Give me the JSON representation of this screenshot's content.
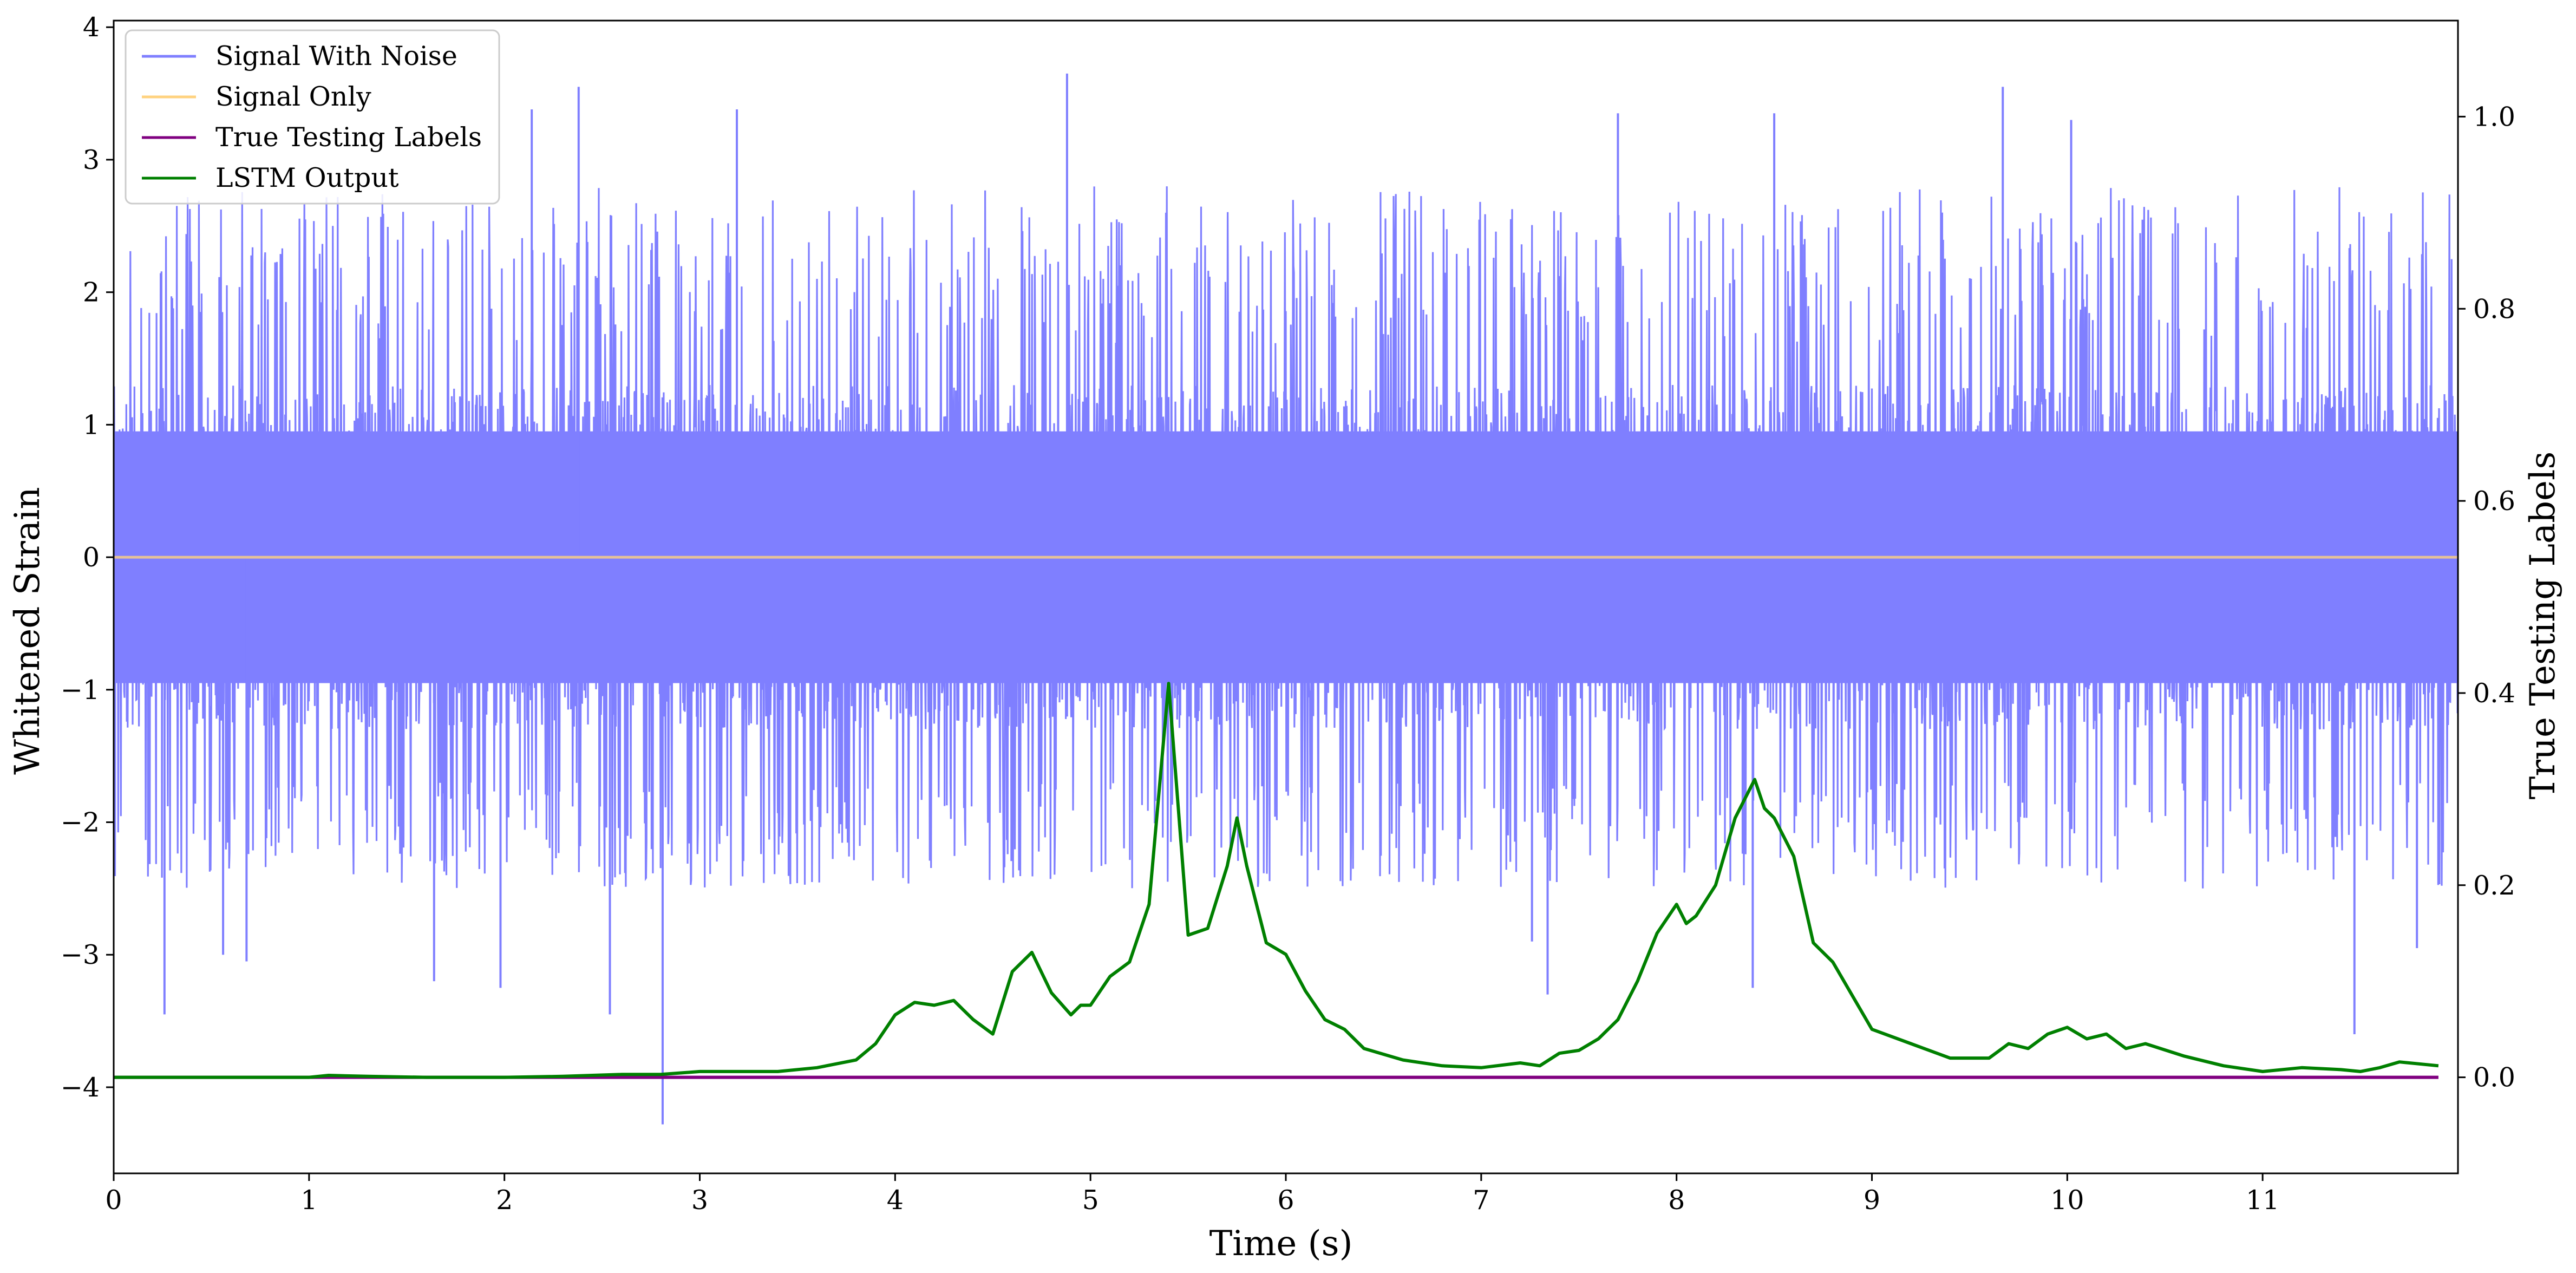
{
  "chart_data": {
    "type": "line",
    "xlabel": "Time (s)",
    "ylabel": "Whitened Strain",
    "y2label": "True Testing Labels",
    "xlim": [
      0,
      12
    ],
    "ylim": [
      -4.65,
      4.05
    ],
    "y2lim": [
      -0.1,
      1.1
    ],
    "x_ticks": [
      "0",
      "1",
      "2",
      "3",
      "4",
      "5",
      "6",
      "7",
      "8",
      "9",
      "10",
      "11"
    ],
    "y_ticks": [
      "−4",
      "−3",
      "−2",
      "−1",
      "0",
      "1",
      "2",
      "3",
      "4"
    ],
    "y2_ticks": [
      "0.0",
      "0.2",
      "0.4",
      "0.6",
      "0.8",
      "1.0"
    ],
    "legend_position": "upper-left",
    "colors": {
      "signal_with_noise": "#7f7fff",
      "signal_only": "#ffd27f",
      "true_labels": "#800080",
      "lstm_output": "#008000"
    },
    "series": [
      {
        "name": "Signal With Noise",
        "axis": "left",
        "description_values": "noise band roughly between -2.0 and 2.0, spikes up to ~3.6 and down to ~-4.3",
        "band": [
          -2.0,
          2.0
        ],
        "spikes": [
          {
            "x": 0.26,
            "y": -3.45
          },
          {
            "x": 0.56,
            "y": -3.0
          },
          {
            "x": 0.68,
            "y": -3.05
          },
          {
            "x": 1.64,
            "y": -3.2
          },
          {
            "x": 1.98,
            "y": -3.25
          },
          {
            "x": 2.54,
            "y": -3.45
          },
          {
            "x": 2.81,
            "y": -4.28
          },
          {
            "x": 2.14,
            "y": 3.38
          },
          {
            "x": 2.38,
            "y": 3.55
          },
          {
            "x": 3.19,
            "y": 3.38
          },
          {
            "x": 4.88,
            "y": 3.65
          },
          {
            "x": 7.26,
            "y": -2.9
          },
          {
            "x": 7.34,
            "y": -3.3
          },
          {
            "x": 8.39,
            "y": -3.25
          },
          {
            "x": 11.47,
            "y": -3.6
          },
          {
            "x": 11.79,
            "y": -2.95
          },
          {
            "x": 9.67,
            "y": 3.55
          },
          {
            "x": 10.02,
            "y": 3.3
          },
          {
            "x": 7.7,
            "y": 3.35
          },
          {
            "x": 8.5,
            "y": 3.35
          }
        ]
      },
      {
        "name": "Signal Only",
        "axis": "left",
        "x": [
          0,
          12
        ],
        "values": [
          0,
          0
        ]
      },
      {
        "name": "True Testing Labels",
        "axis": "right",
        "x": [
          0,
          11.9
        ],
        "values": [
          0,
          0
        ]
      },
      {
        "name": "LSTM Output",
        "axis": "right",
        "x": [
          0,
          0.5,
          1.0,
          1.1,
          1.3,
          1.6,
          2.0,
          2.3,
          2.6,
          2.8,
          3.0,
          3.2,
          3.4,
          3.6,
          3.8,
          3.9,
          4.0,
          4.1,
          4.2,
          4.3,
          4.4,
          4.5,
          4.6,
          4.7,
          4.8,
          4.9,
          4.95,
          5.0,
          5.1,
          5.2,
          5.3,
          5.4,
          5.5,
          5.6,
          5.7,
          5.75,
          5.8,
          5.9,
          6.0,
          6.1,
          6.2,
          6.3,
          6.4,
          6.6,
          6.8,
          7.0,
          7.2,
          7.3,
          7.4,
          7.5,
          7.6,
          7.7,
          7.8,
          7.9,
          8.0,
          8.05,
          8.1,
          8.2,
          8.3,
          8.4,
          8.45,
          8.5,
          8.6,
          8.7,
          8.8,
          9.0,
          9.2,
          9.4,
          9.6,
          9.7,
          9.8,
          9.9,
          10.0,
          10.1,
          10.2,
          10.3,
          10.4,
          10.6,
          10.8,
          11.0,
          11.2,
          11.4,
          11.5,
          11.6,
          11.7,
          11.9
        ],
        "values": [
          0.0,
          0.0,
          0.0,
          0.002,
          0.001,
          0.0,
          0.0,
          0.001,
          0.003,
          0.003,
          0.006,
          0.006,
          0.006,
          0.01,
          0.018,
          0.035,
          0.065,
          0.078,
          0.075,
          0.08,
          0.06,
          0.045,
          0.11,
          0.13,
          0.088,
          0.065,
          0.075,
          0.075,
          0.105,
          0.12,
          0.18,
          0.41,
          0.148,
          0.155,
          0.22,
          0.27,
          0.22,
          0.14,
          0.128,
          0.09,
          0.06,
          0.05,
          0.03,
          0.018,
          0.012,
          0.01,
          0.015,
          0.012,
          0.025,
          0.028,
          0.04,
          0.06,
          0.1,
          0.15,
          0.18,
          0.16,
          0.168,
          0.2,
          0.27,
          0.31,
          0.28,
          0.27,
          0.23,
          0.14,
          0.12,
          0.05,
          0.035,
          0.02,
          0.02,
          0.035,
          0.03,
          0.045,
          0.052,
          0.04,
          0.045,
          0.03,
          0.035,
          0.022,
          0.012,
          0.006,
          0.01,
          0.008,
          0.006,
          0.01,
          0.016,
          0.012
        ]
      }
    ]
  }
}
